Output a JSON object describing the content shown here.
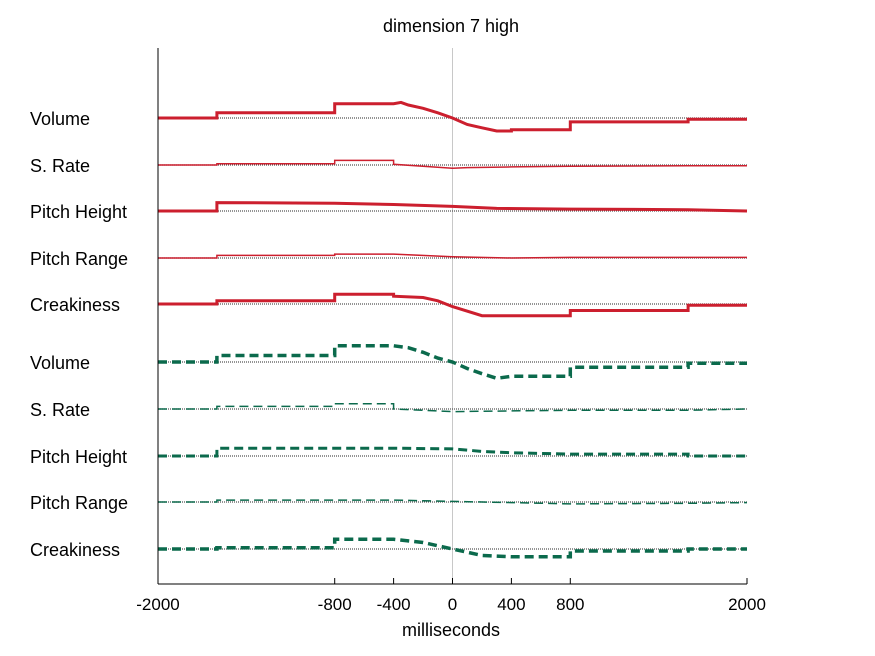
{
  "chart_data": {
    "type": "line",
    "title": "dimension  7 high",
    "xlabel": "milliseconds",
    "xlim": [
      -2000,
      2000
    ],
    "xticks": [
      -2000,
      -800,
      -400,
      0,
      400,
      800,
      2000
    ],
    "xtick_labels": [
      "-2000",
      "-800",
      "-400",
      "0",
      "400",
      "800",
      "2000"
    ],
    "colors": {
      "top_series": "#cc1f2e",
      "bottom_series": "#0b6a4c",
      "baseline": "#555555",
      "zero_line": "#c8c8c8"
    },
    "groups": [
      {
        "line_style": "solid",
        "color": "#cc1f2e",
        "rows": [
          {
            "label": "Volume",
            "weight": 3,
            "points": [
              [
                -2000,
                0
              ],
              [
                -1600,
                0
              ],
              [
                -1600,
                0.08
              ],
              [
                -800,
                0.08
              ],
              [
                -800,
                0.22
              ],
              [
                -400,
                0.22
              ],
              [
                -350,
                0.24
              ],
              [
                -300,
                0.2
              ],
              [
                -200,
                0.15
              ],
              [
                -100,
                0.08
              ],
              [
                0,
                0
              ],
              [
                100,
                -0.1
              ],
              [
                200,
                -0.15
              ],
              [
                300,
                -0.2
              ],
              [
                400,
                -0.2
              ],
              [
                400,
                -0.18
              ],
              [
                800,
                -0.18
              ],
              [
                800,
                -0.06
              ],
              [
                1600,
                -0.06
              ],
              [
                1600,
                -0.02
              ],
              [
                2000,
                -0.02
              ]
            ]
          },
          {
            "label": "S. Rate",
            "weight": 1.5,
            "points": [
              [
                -2000,
                0
              ],
              [
                -1600,
                0
              ],
              [
                -1600,
                0.02
              ],
              [
                -800,
                0.02
              ],
              [
                -800,
                0.07
              ],
              [
                -400,
                0.07
              ],
              [
                -400,
                0.01
              ],
              [
                0,
                -0.05
              ],
              [
                100,
                -0.04
              ],
              [
                400,
                -0.03
              ],
              [
                800,
                -0.02
              ],
              [
                1600,
                -0.01
              ],
              [
                2000,
                -0.01
              ]
            ]
          },
          {
            "label": "Pitch Height",
            "weight": 3,
            "points": [
              [
                -2000,
                0
              ],
              [
                -1600,
                0
              ],
              [
                -1600,
                0.13
              ],
              [
                -800,
                0.12
              ],
              [
                -400,
                0.1
              ],
              [
                0,
                0.07
              ],
              [
                300,
                0.04
              ],
              [
                800,
                0.03
              ],
              [
                1600,
                0.02
              ],
              [
                2000,
                0.0
              ]
            ]
          },
          {
            "label": "Pitch Range",
            "weight": 1.5,
            "points": [
              [
                -2000,
                0
              ],
              [
                -1600,
                0
              ],
              [
                -1600,
                0.04
              ],
              [
                -800,
                0.04
              ],
              [
                -800,
                0.06
              ],
              [
                -400,
                0.06
              ],
              [
                0,
                0.02
              ],
              [
                400,
                0.0
              ],
              [
                800,
                0.01
              ],
              [
                1600,
                0.01
              ],
              [
                2000,
                0.01
              ]
            ]
          },
          {
            "label": "Creakiness",
            "weight": 3,
            "points": [
              [
                -2000,
                0
              ],
              [
                -1600,
                0
              ],
              [
                -1600,
                0.05
              ],
              [
                -800,
                0.05
              ],
              [
                -800,
                0.15
              ],
              [
                -400,
                0.15
              ],
              [
                -400,
                0.12
              ],
              [
                -200,
                0.1
              ],
              [
                -100,
                0.05
              ],
              [
                0,
                -0.04
              ],
              [
                200,
                -0.18
              ],
              [
                400,
                -0.18
              ],
              [
                800,
                -0.18
              ],
              [
                800,
                -0.1
              ],
              [
                1600,
                -0.1
              ],
              [
                1600,
                -0.02
              ],
              [
                2000,
                -0.02
              ]
            ]
          }
        ]
      },
      {
        "line_style": "dashed",
        "color": "#0b6a4c",
        "rows": [
          {
            "label": "Volume",
            "weight": 3.5,
            "points": [
              [
                -2000,
                0
              ],
              [
                -1600,
                0
              ],
              [
                -1600,
                0.1
              ],
              [
                -800,
                0.1
              ],
              [
                -800,
                0.25
              ],
              [
                -400,
                0.25
              ],
              [
                -300,
                0.22
              ],
              [
                -200,
                0.15
              ],
              [
                -100,
                0.06
              ],
              [
                0,
                0
              ],
              [
                100,
                -0.1
              ],
              [
                200,
                -0.18
              ],
              [
                300,
                -0.25
              ],
              [
                400,
                -0.22
              ],
              [
                800,
                -0.22
              ],
              [
                800,
                -0.08
              ],
              [
                1600,
                -0.08
              ],
              [
                1600,
                -0.02
              ],
              [
                2000,
                -0.02
              ]
            ]
          },
          {
            "label": "S. Rate",
            "weight": 1.5,
            "points": [
              [
                -2000,
                0
              ],
              [
                -1600,
                0
              ],
              [
                -1600,
                0.04
              ],
              [
                -800,
                0.04
              ],
              [
                -800,
                0.08
              ],
              [
                -400,
                0.08
              ],
              [
                -400,
                0.0
              ],
              [
                0,
                -0.04
              ],
              [
                400,
                -0.03
              ],
              [
                800,
                -0.02
              ],
              [
                1600,
                -0.02
              ],
              [
                2000,
                0.0
              ]
            ]
          },
          {
            "label": "Pitch Height",
            "weight": 3,
            "points": [
              [
                -2000,
                0
              ],
              [
                -1600,
                0
              ],
              [
                -1600,
                0.12
              ],
              [
                -800,
                0.12
              ],
              [
                -400,
                0.12
              ],
              [
                0,
                0.11
              ],
              [
                200,
                0.07
              ],
              [
                400,
                0.05
              ],
              [
                800,
                0.03
              ],
              [
                1600,
                0.03
              ],
              [
                1600,
                0.0
              ],
              [
                2000,
                0.0
              ]
            ]
          },
          {
            "label": "Pitch Range",
            "weight": 1.5,
            "points": [
              [
                -2000,
                0
              ],
              [
                -1600,
                0
              ],
              [
                -1600,
                0.03
              ],
              [
                -800,
                0.03
              ],
              [
                -400,
                0.03
              ],
              [
                0,
                0.01
              ],
              [
                400,
                -0.01
              ],
              [
                800,
                -0.03
              ],
              [
                1600,
                -0.02
              ],
              [
                2000,
                -0.01
              ]
            ]
          },
          {
            "label": "Creakiness",
            "weight": 3.5,
            "points": [
              [
                -2000,
                0
              ],
              [
                -1600,
                0
              ],
              [
                -1600,
                0.02
              ],
              [
                -800,
                0.02
              ],
              [
                -800,
                0.15
              ],
              [
                -400,
                0.15
              ],
              [
                -200,
                0.1
              ],
              [
                -100,
                0.05
              ],
              [
                0,
                0
              ],
              [
                200,
                -0.1
              ],
              [
                400,
                -0.12
              ],
              [
                800,
                -0.12
              ],
              [
                800,
                -0.03
              ],
              [
                1600,
                -0.03
              ],
              [
                1600,
                0.0
              ],
              [
                2000,
                0.0
              ]
            ]
          }
        ]
      }
    ]
  }
}
